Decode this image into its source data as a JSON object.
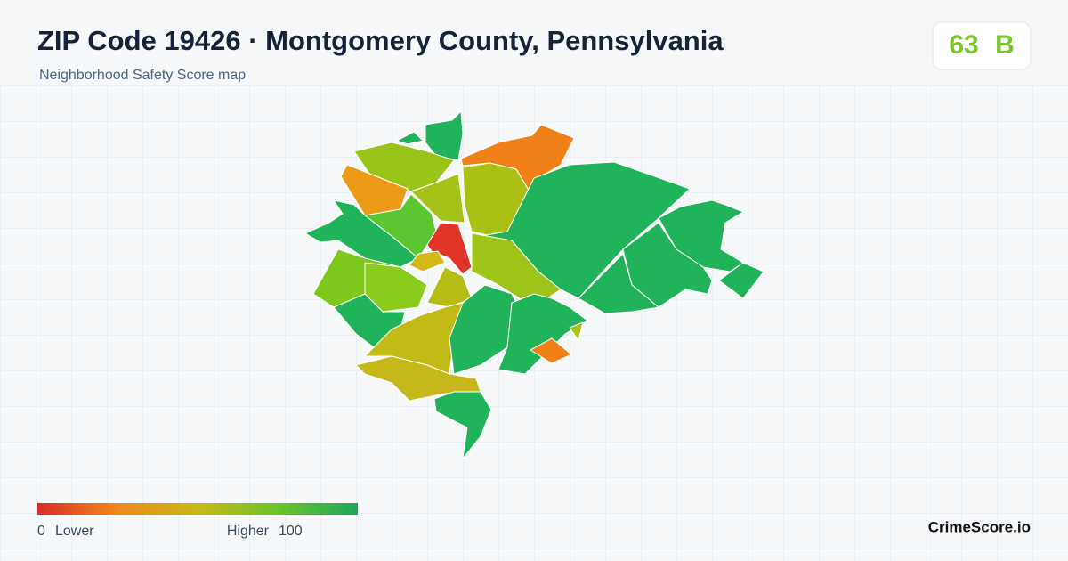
{
  "header": {
    "title": "ZIP Code 19426 · Montgomery County, Pennsylvania",
    "subtitle": "Neighborhood Safety Score map"
  },
  "score": {
    "value": "63",
    "grade": "B"
  },
  "legend": {
    "min": "0",
    "min_label": "Lower",
    "max_label": "Higher",
    "max": "100"
  },
  "brand": "CrimeScore.io"
}
